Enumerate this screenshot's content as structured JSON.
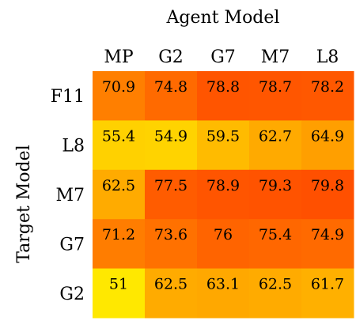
{
  "chart_data": {
    "type": "heatmap",
    "title": "",
    "xlabel": "Agent Model",
    "ylabel": "Target Model",
    "x_categories": [
      "MP",
      "G2",
      "G7",
      "M7",
      "L8"
    ],
    "y_categories": [
      "F11",
      "L8",
      "M7",
      "G7",
      "G2"
    ],
    "values": [
      [
        70.9,
        74.8,
        78.8,
        78.7,
        78.2
      ],
      [
        55.4,
        54.9,
        59.5,
        62.7,
        64.9
      ],
      [
        62.5,
        77.5,
        78.9,
        79.3,
        79.8
      ],
      [
        71.2,
        73.6,
        76,
        75.4,
        74.9
      ],
      [
        51,
        62.5,
        63.1,
        62.5,
        61.7
      ]
    ],
    "value_labels": [
      [
        "70.9",
        "74.8",
        "78.8",
        "78.7",
        "78.2"
      ],
      [
        "55.4",
        "54.9",
        "59.5",
        "62.7",
        "64.9"
      ],
      [
        "62.5",
        "77.5",
        "78.9",
        "79.3",
        "79.8"
      ],
      [
        "71.2",
        "73.6",
        "76",
        "75.4",
        "74.9"
      ],
      [
        "51",
        "62.5",
        "63.1",
        "62.5",
        "61.7"
      ]
    ],
    "colormap": "autumn_r",
    "color_range": [
      51,
      79.8
    ],
    "colorbar": false
  }
}
